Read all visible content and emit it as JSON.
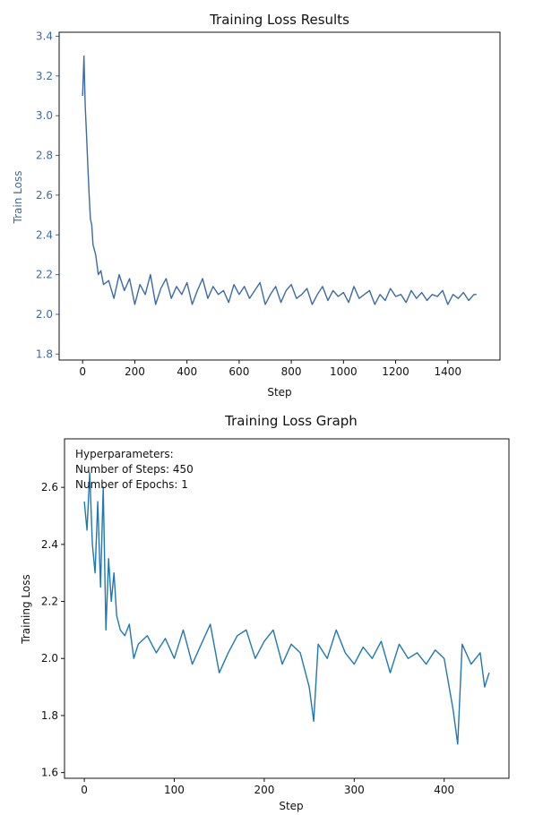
{
  "chart_data": [
    {
      "type": "line",
      "title": "Training Loss Results",
      "xlabel": "Step",
      "ylabel": "Train Loss",
      "xlim": [
        -90,
        1600
      ],
      "ylim": [
        1.77,
        3.42
      ],
      "xticks": [
        0,
        200,
        400,
        600,
        800,
        1000,
        1200,
        1400
      ],
      "yticks": [
        1.8,
        2.0,
        2.2,
        2.4,
        2.6,
        2.8,
        3.0,
        3.2,
        3.4
      ],
      "ytick_labels": [
        "1.8",
        "2.0",
        "2.2",
        "2.4",
        "2.6",
        "2.8",
        "3.0",
        "3.2",
        "3.4"
      ],
      "grid": false,
      "colors": {
        "series": "#3b6aa8",
        "yaxis": "#3b6aa8"
      },
      "series": [
        {
          "x": [
            0,
            5,
            10,
            15,
            20,
            25,
            30,
            35,
            40,
            50,
            60,
            70,
            80,
            100,
            120,
            140,
            160,
            180,
            200,
            220,
            240,
            260,
            280,
            300,
            320,
            340,
            360,
            380,
            400,
            420,
            440,
            460,
            480,
            500,
            520,
            540,
            560,
            580,
            600,
            620,
            640,
            660,
            680,
            700,
            720,
            740,
            760,
            780,
            800,
            820,
            840,
            860,
            880,
            900,
            920,
            940,
            960,
            980,
            1000,
            1020,
            1040,
            1060,
            1080,
            1100,
            1120,
            1140,
            1160,
            1180,
            1200,
            1220,
            1240,
            1260,
            1280,
            1300,
            1320,
            1340,
            1360,
            1380,
            1400,
            1420,
            1440,
            1460,
            1480,
            1500,
            1510
          ],
          "values": [
            3.1,
            3.3,
            3.05,
            2.9,
            2.75,
            2.6,
            2.48,
            2.45,
            2.35,
            2.3,
            2.2,
            2.22,
            2.15,
            2.17,
            2.08,
            2.2,
            2.12,
            2.18,
            2.05,
            2.15,
            2.1,
            2.2,
            2.05,
            2.13,
            2.18,
            2.08,
            2.14,
            2.1,
            2.16,
            2.05,
            2.12,
            2.18,
            2.08,
            2.14,
            2.1,
            2.12,
            2.06,
            2.15,
            2.1,
            2.14,
            2.08,
            2.12,
            2.16,
            2.05,
            2.1,
            2.14,
            2.06,
            2.12,
            2.15,
            2.08,
            2.1,
            2.13,
            2.05,
            2.1,
            2.14,
            2.07,
            2.12,
            2.09,
            2.11,
            2.06,
            2.14,
            2.08,
            2.1,
            2.12,
            2.05,
            2.1,
            2.07,
            2.13,
            2.09,
            2.1,
            2.06,
            2.12,
            2.08,
            2.11,
            2.07,
            2.1,
            2.09,
            2.12,
            2.05,
            2.1,
            2.08,
            2.11,
            2.07,
            2.1,
            2.1
          ]
        }
      ]
    },
    {
      "type": "line",
      "title": "Training Loss Graph",
      "xlabel": "Step",
      "ylabel": "Training Loss",
      "xlim": [
        -22,
        472
      ],
      "ylim": [
        1.58,
        2.77
      ],
      "xticks": [
        0,
        100,
        200,
        300,
        400
      ],
      "yticks": [
        1.6,
        1.8,
        2.0,
        2.2,
        2.4,
        2.6
      ],
      "ytick_labels": [
        "1.6",
        "1.8",
        "2.0",
        "2.2",
        "2.4",
        "2.6"
      ],
      "grid": false,
      "annotation": [
        "Hyperparameters:",
        "Number of Steps: 450",
        "Number of Epochs: 1"
      ],
      "colors": {
        "series": "#1f77b4",
        "yaxis": "#111111"
      },
      "series": [
        {
          "x": [
            0,
            3,
            6,
            9,
            12,
            15,
            18,
            21,
            24,
            27,
            30,
            33,
            36,
            40,
            45,
            50,
            55,
            60,
            70,
            80,
            90,
            100,
            110,
            120,
            130,
            140,
            150,
            160,
            170,
            180,
            190,
            200,
            210,
            220,
            230,
            240,
            250,
            255,
            260,
            270,
            280,
            290,
            300,
            310,
            320,
            330,
            340,
            350,
            360,
            370,
            380,
            390,
            400,
            410,
            415,
            420,
            430,
            440,
            445,
            450
          ],
          "values": [
            2.55,
            2.45,
            2.65,
            2.4,
            2.3,
            2.55,
            2.25,
            2.6,
            2.1,
            2.35,
            2.2,
            2.3,
            2.15,
            2.1,
            2.08,
            2.12,
            2.0,
            2.05,
            2.08,
            2.02,
            2.07,
            2.0,
            2.1,
            1.98,
            2.05,
            2.12,
            1.95,
            2.02,
            2.08,
            2.1,
            2.0,
            2.06,
            2.1,
            1.98,
            2.05,
            2.02,
            1.9,
            1.78,
            2.05,
            2.0,
            2.1,
            2.02,
            1.98,
            2.04,
            2.0,
            2.06,
            1.95,
            2.05,
            2.0,
            2.02,
            1.98,
            2.03,
            2.0,
            1.82,
            1.7,
            2.05,
            1.98,
            2.02,
            1.9,
            1.95
          ]
        }
      ]
    }
  ]
}
